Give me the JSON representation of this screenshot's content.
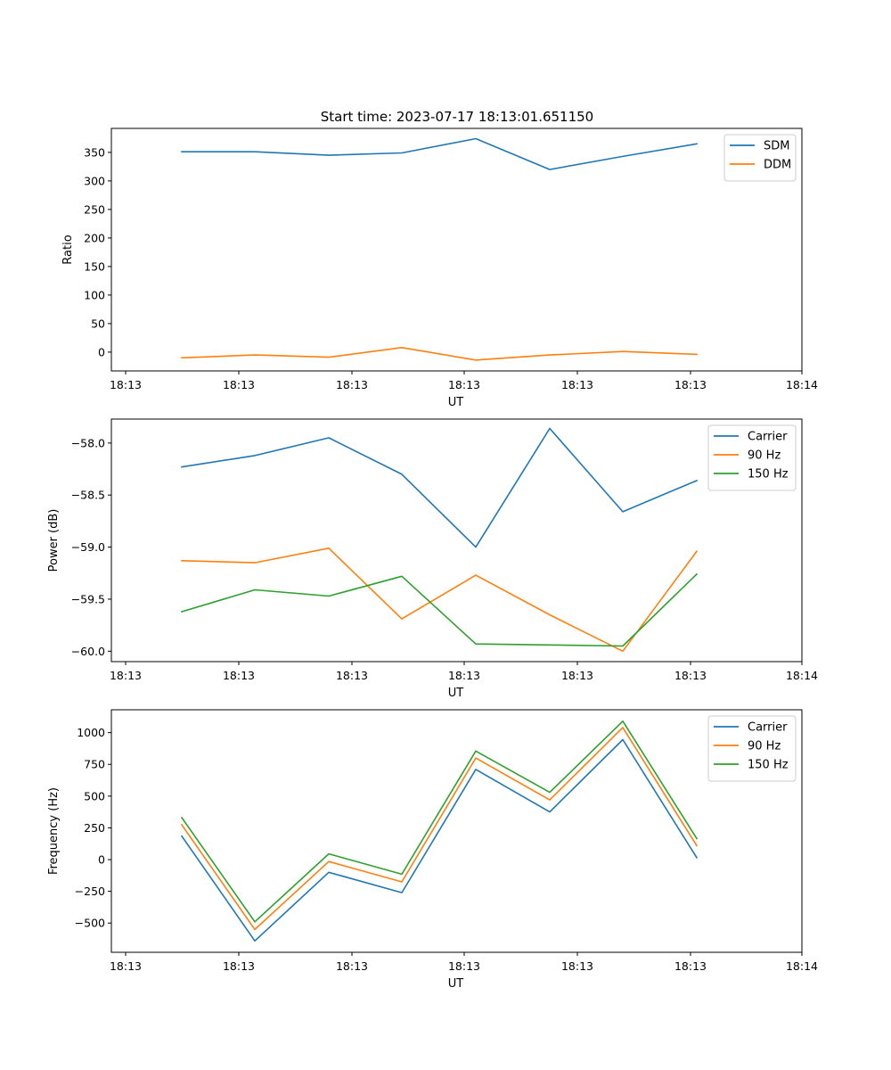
{
  "title": "Start time: 2023-07-17 18:13:01.651150",
  "chart_data": [
    {
      "type": "line",
      "ylabel": "Ratio",
      "xlabel": "UT",
      "x_tick_labels": [
        "18:13",
        "18:13",
        "18:13",
        "18:13",
        "18:13",
        "18:13",
        "18:14"
      ],
      "y_ticks": [
        0,
        50,
        100,
        150,
        200,
        250,
        300,
        350
      ],
      "ylim": [
        -33,
        392
      ],
      "x": [
        1,
        2,
        3,
        4,
        5,
        6,
        7,
        8
      ],
      "series": [
        {
          "name": "SDM",
          "color": "#1f77b4",
          "values": [
            351,
            351,
            345,
            349,
            374,
            320,
            343,
            365
          ]
        },
        {
          "name": "DDM",
          "color": "#ff7f0e",
          "values": [
            -10,
            -5,
            -9,
            8,
            -14,
            -5,
            1,
            -4
          ]
        }
      ]
    },
    {
      "type": "line",
      "ylabel": "Power (dB)",
      "xlabel": "UT",
      "x_tick_labels": [
        "18:13",
        "18:13",
        "18:13",
        "18:13",
        "18:13",
        "18:13",
        "18:14"
      ],
      "y_ticks": [
        -60.0,
        -59.5,
        -59.0,
        -58.5,
        -58.0
      ],
      "y_tick_labels": [
        "−60.0",
        "−59.5",
        "−59.0",
        "−58.5",
        "−58.0"
      ],
      "ylim": [
        -60.1,
        -57.77
      ],
      "x": [
        1,
        2,
        3,
        4,
        5,
        6,
        7,
        8
      ],
      "series": [
        {
          "name": "Carrier",
          "color": "#1f77b4",
          "values": [
            -58.23,
            -58.12,
            -57.95,
            -58.3,
            -59.0,
            -57.86,
            -58.66,
            -58.36
          ]
        },
        {
          "name": "90 Hz",
          "color": "#ff7f0e",
          "values": [
            -59.13,
            -59.15,
            -59.01,
            -59.69,
            -59.27,
            -59.65,
            -60.0,
            -59.04
          ]
        },
        {
          "name": "150 Hz",
          "color": "#2ca02c",
          "values": [
            -59.62,
            -59.41,
            -59.47,
            -59.28,
            -59.93,
            -59.94,
            -59.95,
            -59.26
          ]
        }
      ]
    },
    {
      "type": "line",
      "ylabel": "Frequency (Hz)",
      "xlabel": "UT",
      "x_tick_labels": [
        "18:13",
        "18:13",
        "18:13",
        "18:13",
        "18:13",
        "18:13",
        "18:14"
      ],
      "y_ticks": [
        -500,
        -250,
        0,
        250,
        500,
        750,
        1000
      ],
      "y_tick_labels": [
        "−500",
        "−250",
        "0",
        "250",
        "500",
        "750",
        "1000"
      ],
      "ylim": [
        -730,
        1180
      ],
      "x": [
        1,
        2,
        3,
        4,
        5,
        6,
        7,
        8
      ],
      "series": [
        {
          "name": "Carrier",
          "color": "#1f77b4",
          "values": [
            185,
            -640,
            -100,
            -260,
            710,
            375,
            945,
            15
          ]
        },
        {
          "name": "90 Hz",
          "color": "#ff7f0e",
          "values": [
            275,
            -550,
            -15,
            -175,
            800,
            470,
            1040,
            110
          ]
        },
        {
          "name": "150 Hz",
          "color": "#2ca02c",
          "values": [
            330,
            -490,
            45,
            -115,
            855,
            530,
            1090,
            165
          ]
        }
      ]
    }
  ]
}
